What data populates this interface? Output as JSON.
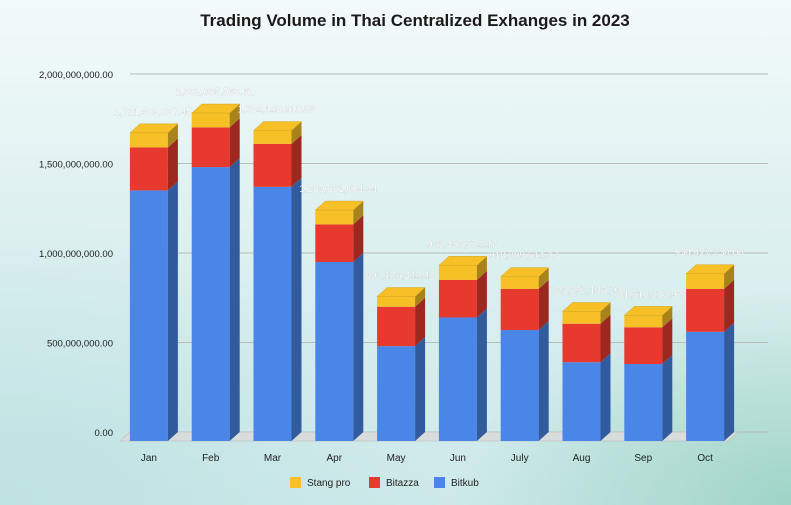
{
  "chart_data": {
    "type": "bar",
    "stacked": true,
    "style": "3d",
    "title": "Trading Volume in Thai Centralized Exhanges in 2023",
    "xlabel": "",
    "ylabel": "",
    "ylim": [
      0,
      2000000000
    ],
    "yticks": [
      0,
      500000000,
      1000000000,
      1500000000,
      2000000000
    ],
    "ytick_labels": [
      "0.00",
      "500,000,000.00",
      "1,000,000,000.00",
      "1,500,000,000.00",
      "2,000,000,000.00"
    ],
    "grid": true,
    "legend_position": "bottom",
    "categories": [
      "Jan",
      "Feb",
      "Mar",
      "Apr",
      "May",
      "Jun",
      "July",
      "Aug",
      "Sep",
      "Oct"
    ],
    "series": [
      {
        "name": "Bitkub",
        "color": "#4a86e8",
        "values": [
          1400000000,
          1530000000,
          1420000000,
          1000000000,
          530000000,
          690000000,
          620000000,
          440000000,
          430000000,
          610000000
        ]
      },
      {
        "name": "Bitazza",
        "color": "#e8392f",
        "values": [
          240000000,
          222000000,
          240000000,
          210000000,
          220000000,
          210000000,
          230000000,
          215000000,
          205000000,
          240000000
        ]
      },
      {
        "name": "Stang pro",
        "color": "#f6c026",
        "values": [
          81509037.45,
          80085563.61,
          74143910.96,
          79881004.44,
          57126344.42,
          81356574.47,
          68209614.17,
          68297136.7,
          66610218.92,
          84427734.08
        ]
      }
    ],
    "totals": [
      1721509037.45,
      1832085563.61,
      1734143910.96,
      1289881004.44,
      807126344.42,
      981356574.47,
      918209614.17,
      723297136.7,
      701610218.92,
      934427734.08
    ],
    "total_labels": [
      "1,721,509,037.45",
      "1,832,085,563.61",
      "1,734,143,910.96",
      "1,289,881,004.44",
      "807,126,344.42",
      "981,356,574.47",
      "918,209,614.17",
      "723,297,136.70",
      "701,610,218.92",
      "934,427,734.08"
    ]
  }
}
